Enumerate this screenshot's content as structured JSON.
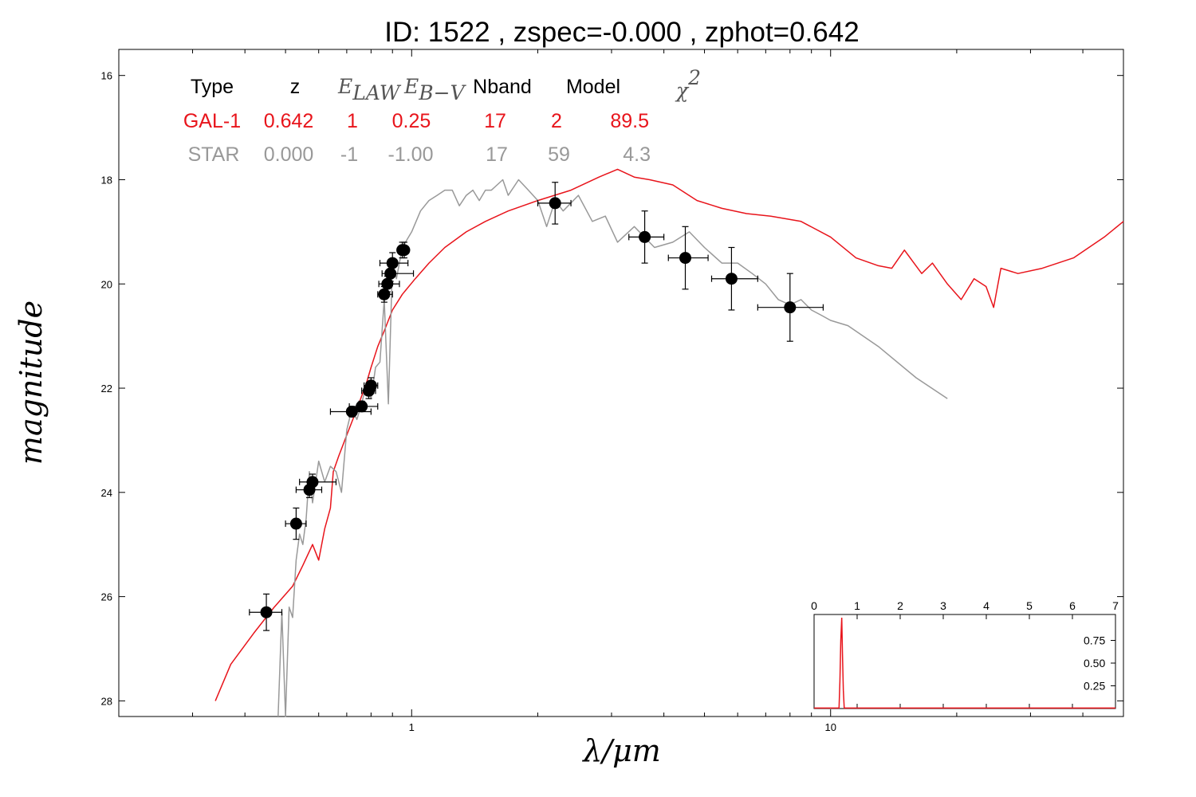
{
  "title": "ID:  1522  , zspec=-0.000 , zphot=0.642",
  "xlabel": "λ/μm",
  "ylabel": "magnitude",
  "colors": {
    "galaxy": "#e8141b",
    "star": "#999999",
    "points": "#000000"
  },
  "fit_table": {
    "headers": [
      "Type",
      "z",
      "E_LAW",
      "E_B−V",
      "Nband",
      "Model",
      "χ²"
    ],
    "header_math": {
      "elaw_main": "E",
      "elaw_sub": "LAW",
      "ebv_main": "E",
      "ebv_sub": "B−V",
      "chi_main": "χ",
      "chi_sup": "2"
    },
    "rows": [
      {
        "type": "GAL-1",
        "z": "0.642",
        "elaw": "1",
        "ebv": "0.25",
        "nband": "17",
        "model": "2",
        "chi2": "89.5",
        "color": "#e8141b"
      },
      {
        "type": "STAR",
        "z": "0.000",
        "elaw": "-1",
        "ebv": "-1.00",
        "nband": "17",
        "model": "59",
        "chi2": "4.3",
        "color": "#999999"
      }
    ]
  },
  "chart_data": [
    {
      "type": "line",
      "x_scale": "log",
      "xlim": [
        0.2,
        50
      ],
      "ylim": [
        28.3,
        15.5
      ],
      "y_inverted": true,
      "xticks": [
        1,
        10
      ],
      "xtick_labels": [
        "1",
        "10"
      ],
      "yticks": [
        16,
        18,
        20,
        22,
        24,
        26,
        28
      ],
      "ytick_labels": [
        "16",
        "18",
        "20",
        "22",
        "24",
        "26",
        "28"
      ],
      "grid": false,
      "series": [
        {
          "name": "GAL-1",
          "kind": "line",
          "color": "#e8141b",
          "x": [
            0.34,
            0.37,
            0.42,
            0.47,
            0.52,
            0.55,
            0.58,
            0.6,
            0.62,
            0.64,
            0.65,
            0.67,
            0.7,
            0.74,
            0.78,
            0.8,
            0.83,
            0.86,
            0.9,
            0.95,
            1.02,
            1.1,
            1.2,
            1.35,
            1.5,
            1.7,
            2.0,
            2.4,
            2.8,
            3.1,
            3.4,
            3.7,
            4.2,
            4.8,
            5.5,
            6.3,
            7.2,
            8.5,
            10.0,
            11.5,
            13.0,
            14.0,
            15.0,
            16.5,
            17.5,
            19.0,
            20.5,
            22.0,
            23.5,
            24.5,
            25.5,
            28.0,
            32.0,
            38.0,
            45.0,
            50.0
          ],
          "y": [
            28.0,
            27.3,
            26.7,
            26.2,
            25.8,
            25.4,
            25.0,
            25.3,
            24.7,
            24.3,
            23.6,
            23.3,
            22.9,
            22.4,
            21.9,
            21.6,
            21.2,
            20.9,
            20.5,
            20.2,
            19.9,
            19.6,
            19.3,
            19.0,
            18.8,
            18.6,
            18.4,
            18.2,
            17.95,
            17.8,
            17.95,
            18.0,
            18.1,
            18.4,
            18.55,
            18.65,
            18.7,
            18.8,
            19.1,
            19.5,
            19.65,
            19.7,
            19.35,
            19.8,
            19.6,
            20.0,
            20.3,
            19.9,
            20.05,
            20.45,
            19.7,
            19.8,
            19.7,
            19.5,
            19.1,
            18.8
          ]
        },
        {
          "name": "STAR",
          "kind": "line",
          "color": "#999999",
          "x": [
            0.48,
            0.49,
            0.5,
            0.51,
            0.52,
            0.53,
            0.54,
            0.55,
            0.56,
            0.57,
            0.58,
            0.6,
            0.62,
            0.64,
            0.66,
            0.68,
            0.7,
            0.72,
            0.74,
            0.76,
            0.78,
            0.8,
            0.82,
            0.84,
            0.86,
            0.88,
            0.9,
            0.92,
            0.95,
            1.0,
            1.05,
            1.1,
            1.15,
            1.2,
            1.25,
            1.3,
            1.35,
            1.4,
            1.45,
            1.5,
            1.55,
            1.6,
            1.65,
            1.7,
            1.8,
            1.9,
            2.0,
            2.1,
            2.2,
            2.3,
            2.5,
            2.7,
            2.9,
            3.1,
            3.4,
            3.8,
            4.2,
            4.6,
            5.0,
            5.5,
            6.0,
            6.5,
            7.0,
            7.5,
            8.0,
            8.5,
            9.0,
            9.5,
            10.0,
            11.0,
            13.0,
            16.0,
            19.0
          ],
          "y": [
            28.3,
            26.3,
            28.3,
            26.2,
            26.4,
            25.3,
            24.8,
            25.0,
            24.5,
            23.6,
            24.2,
            23.4,
            23.8,
            23.5,
            23.6,
            24.0,
            22.8,
            22.4,
            22.6,
            22.3,
            21.9,
            22.2,
            21.6,
            21.5,
            20.3,
            22.3,
            19.6,
            19.9,
            19.3,
            19.0,
            18.6,
            18.4,
            18.3,
            18.2,
            18.2,
            18.5,
            18.3,
            18.2,
            18.4,
            18.2,
            18.2,
            18.1,
            18.0,
            18.3,
            18.0,
            18.2,
            18.4,
            18.9,
            18.4,
            18.6,
            18.3,
            18.8,
            18.7,
            19.2,
            18.9,
            19.3,
            19.2,
            19.0,
            19.3,
            19.6,
            19.6,
            19.8,
            20.0,
            20.3,
            20.4,
            20.3,
            20.5,
            20.6,
            20.7,
            20.8,
            21.2,
            21.8,
            22.2
          ]
        },
        {
          "name": "observed",
          "kind": "errorbar",
          "color": "#000000",
          "x": [
            0.45,
            0.53,
            0.57,
            0.58,
            0.72,
            0.76,
            0.79,
            0.8,
            0.86,
            0.875,
            0.89,
            0.9,
            0.95,
            0.96,
            2.2,
            3.6,
            4.5,
            5.8,
            8.0
          ],
          "y": [
            26.3,
            24.6,
            23.95,
            23.8,
            22.45,
            22.35,
            22.05,
            21.95,
            20.2,
            20.0,
            19.8,
            19.6,
            19.35,
            19.35,
            18.45,
            19.1,
            19.5,
            19.9,
            20.45
          ],
          "xerr_low": [
            0.04,
            0.03,
            0.04,
            0.04,
            0.08,
            0.05,
            0.03,
            0.03,
            0.03,
            0.04,
            0.04,
            0.06,
            0.02,
            0.02,
            0.2,
            0.3,
            0.4,
            0.6,
            1.3
          ],
          "xerr_high": [
            0.04,
            0.03,
            0.04,
            0.08,
            0.08,
            0.07,
            0.03,
            0.03,
            0.04,
            0.06,
            0.12,
            0.08,
            0.02,
            0.02,
            0.2,
            0.4,
            0.6,
            0.9,
            1.6
          ],
          "yerr": [
            0.35,
            0.3,
            0.15,
            0.15,
            0.1,
            0.1,
            0.15,
            0.15,
            0.15,
            0.15,
            0.15,
            0.2,
            0.15,
            0.15,
            0.4,
            0.5,
            0.6,
            0.6,
            0.65
          ]
        }
      ]
    },
    {
      "type": "line",
      "inset": true,
      "xlim": [
        0,
        7
      ],
      "xticks": [
        0,
        1,
        2,
        3,
        4,
        5,
        6,
        7
      ],
      "xtick_labels": [
        "0",
        "1",
        "2",
        "3",
        "4",
        "5",
        "6",
        "7"
      ],
      "ylim": [
        0,
        1
      ],
      "yticks": [
        0.25,
        0.5,
        0.75
      ],
      "ytick_labels": [
        "0.25",
        "0.50",
        "0.75"
      ],
      "series": [
        {
          "kind": "line",
          "color": "#e8141b",
          "x": [
            0,
            0.58,
            0.6,
            0.62,
            0.642,
            0.66,
            0.68,
            0.7,
            7.0
          ],
          "y": [
            0.005,
            0.005,
            0.3,
            0.75,
            1.0,
            0.6,
            0.2,
            0.005,
            0.005
          ]
        }
      ]
    }
  ]
}
